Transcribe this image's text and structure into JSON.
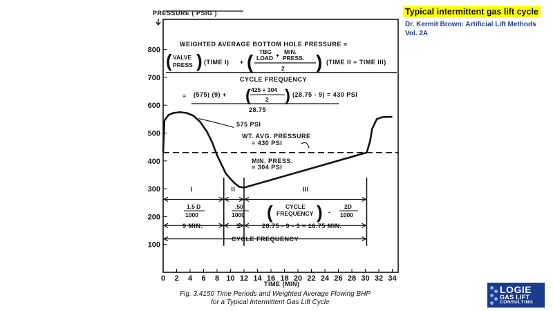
{
  "slide_title": "Typical intermittent gas lift cycle",
  "source_lines": [
    "Dr. Kermit Brown: Artificial Lift Methods",
    "Vol. 2A"
  ],
  "logo": {
    "line1": "LOGIE",
    "line2": "GAS LIFT",
    "line3": "CONSULTING",
    "color": "#1a3b8e"
  },
  "figure_caption": [
    "Fig. 3.4150   Time Periods and Weighted Average Flowing BHP",
    "for a Typical Intermittent Gas Lift Cycle"
  ],
  "chart_data": {
    "type": "line",
    "ylabel": "PRESSURE ( PSIG )",
    "xlabel": "TIME (MIN)",
    "xlim": [
      0,
      34
    ],
    "ylim": [
      0,
      850
    ],
    "x_ticks": [
      "0",
      "2",
      "4",
      "6",
      "8",
      "10",
      "12",
      "14",
      "16",
      "18",
      "20",
      "22",
      "24",
      "26",
      "28",
      "30",
      "32",
      "34"
    ],
    "y_ticks": [
      "100",
      "200",
      "300",
      "400",
      "500",
      "600",
      "700",
      "800"
    ],
    "grid": false,
    "series": [
      {
        "x": [
          0,
          0.2,
          0.8,
          1.5,
          2.5,
          3.5,
          4.5,
          5.5,
          6.5,
          7.3,
          8,
          8.7,
          9.3,
          10,
          10.7,
          11.3,
          12,
          30.2,
          30.7,
          31,
          31.7,
          32.5,
          33.5,
          34
        ],
        "y": [
          430,
          545,
          565,
          572,
          575,
          572,
          562,
          540,
          505,
          465,
          420,
          385,
          355,
          335,
          318,
          307,
          304,
          430,
          470,
          515,
          550,
          557,
          558,
          558
        ]
      }
    ],
    "reference_line": {
      "y": 430,
      "style": "dashed"
    },
    "formula": {
      "heading": "WEIGHTED AVERAGE BOTTOM HOLE PRESSURE =",
      "valve_press": [
        "VALVE",
        "PRESS"
      ],
      "time_1": "(TIME I)",
      "plus": "+",
      "tbg_load": [
        "TBG",
        "LOAD"
      ],
      "min_press": [
        "MIN.",
        "PRESS."
      ],
      "two": "2",
      "time_23": "(TIME II + TIME III)",
      "denominator": "CYCLE FREQUENCY",
      "eq": "=",
      "num_a": "(575) (9) +",
      "frac_num": "425 + 304",
      "num_b": "(28.75 - 9)  =  430 PSI",
      "denom_val": "28.75"
    },
    "annotations": {
      "peak": "575 PSI",
      "avg": [
        "WT. AVG. PRESSURE",
        "= 430 PSI"
      ],
      "min": [
        "MIN. PRESS.",
        "= 304 PSI"
      ]
    },
    "periods": {
      "boundaries_x": [
        0,
        9,
        12,
        30.2
      ],
      "labels": [
        "I",
        "II",
        "III"
      ],
      "formulas": {
        "p1": [
          "1.5 D",
          "1000"
        ],
        "p2": [
          ".50",
          "1000"
        ],
        "p3_a": "CYCLE",
        "p3_b": "FREQUENCY",
        "p3_c": "-",
        "p3_d": [
          "2D",
          "1000"
        ]
      },
      "durations": [
        "9 MIN.",
        "3",
        "28.75 - 9 - 3 = 16.75 MIN."
      ],
      "cycle_label": "CYCLE FREQUENCY"
    }
  }
}
